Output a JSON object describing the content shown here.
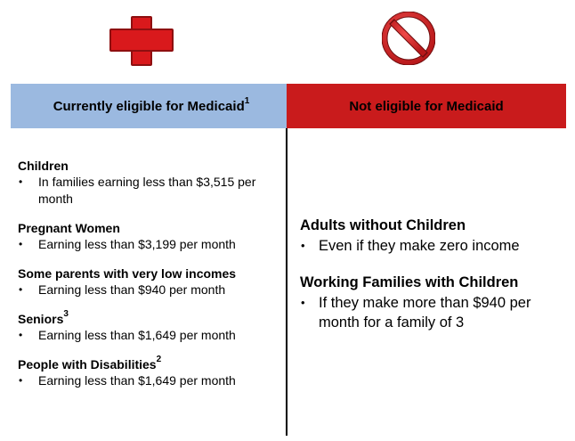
{
  "icons": {
    "eligible": "red-cross-icon",
    "not_eligible": "prohibition-icon"
  },
  "colors": {
    "eligible_header": "#9bb9e0",
    "not_eligible_header": "#c91b1c",
    "icon_red": "#d9191c"
  },
  "left_header": {
    "title": "Currently eligible for Medicaid",
    "sup": "1"
  },
  "right_header": {
    "title": "Not eligible for Medicaid"
  },
  "left_groups": [
    {
      "title": "Children",
      "sup": "",
      "bullets": [
        "In families earning less than $3,515 per month"
      ]
    },
    {
      "title": "Pregnant Women",
      "sup": "",
      "bullets": [
        "Earning less than $3,199 per month"
      ]
    },
    {
      "title": "Some parents with very low incomes",
      "sup": "",
      "bullets": [
        "Earning less than $940 per month"
      ]
    },
    {
      "title": "Seniors",
      "sup": "3",
      "bullets": [
        "Earning less than $1,649 per month"
      ]
    },
    {
      "title": "People with Disabilities",
      "sup": "2",
      "bullets": [
        "Earning less than $1,649 per month"
      ]
    }
  ],
  "right_groups": [
    {
      "title": "Adults without Children",
      "bullets": [
        "Even if they make zero income"
      ]
    },
    {
      "title": "Working Families with Children",
      "bullets": [
        "If they make more than $940 per month for a family of 3"
      ]
    }
  ]
}
